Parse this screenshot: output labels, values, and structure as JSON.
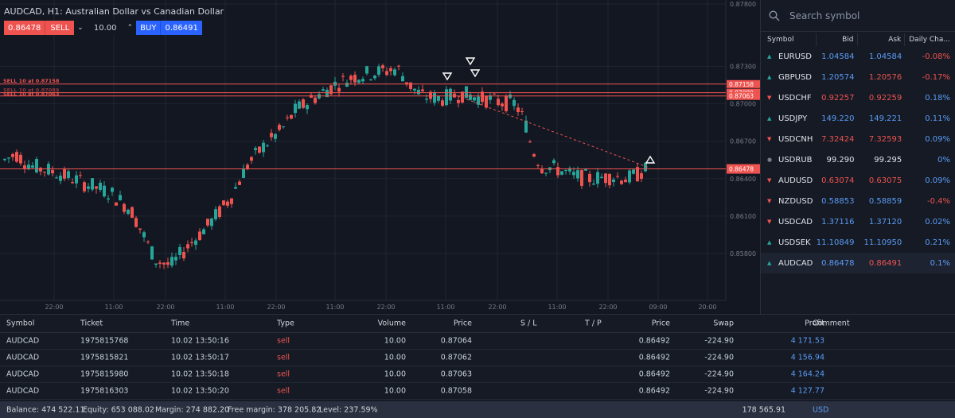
{
  "chart": {
    "title": "AUDCAD, H1: Australian Dollar vs Canadian Dollar",
    "sell_price": "0.86478",
    "sell_label": "SELL",
    "quantity": "10.00",
    "buy_label": "BUY",
    "buy_price": "0.86491",
    "price_axis": [
      "0.87800",
      "0.87300",
      "0.87000",
      "0.86700",
      "0.86400",
      "0.86100",
      "0.85800"
    ],
    "time_axis": [
      "22:00",
      "11:00",
      "22:00",
      "11:00",
      "22:00",
      "11:00",
      "22:00",
      "11:00",
      "22:00",
      "11:00",
      "22:00",
      "09:00",
      "20:00"
    ],
    "order_labels": [
      "SELL 10 at 0.87158",
      "SELL 10 at 0.87089",
      "SELL 10 at 0.87063"
    ],
    "price_tags": [
      "0.87158",
      "0.87089",
      "0.87063"
    ],
    "current_price_tag": "0.86478",
    "colors": {
      "up": "#26a69a",
      "down": "#ef5350",
      "order_line": "#ef5350",
      "background": "#131722"
    }
  },
  "watchlist": {
    "search_placeholder": "Search symbol",
    "search_icon": "search-icon",
    "headers": {
      "symbol": "Symbol",
      "bid": "Bid",
      "ask": "Ask",
      "change": "Daily Cha..."
    },
    "rows": [
      {
        "symbol": "EURUSD",
        "dir": "up",
        "bid": "1.04584",
        "ask": "1.04584",
        "change": "-0.08%",
        "bid_color": "blue",
        "ask_color": "blue",
        "change_color": "red"
      },
      {
        "symbol": "GBPUSD",
        "dir": "up",
        "bid": "1.20574",
        "ask": "1.20576",
        "change": "-0.17%",
        "bid_color": "blue",
        "ask_color": "red",
        "change_color": "red"
      },
      {
        "symbol": "USDCHF",
        "dir": "down",
        "bid": "0.92257",
        "ask": "0.92259",
        "change": "0.18%",
        "bid_color": "red",
        "ask_color": "red",
        "change_color": "blue"
      },
      {
        "symbol": "USDJPY",
        "dir": "up",
        "bid": "149.220",
        "ask": "149.221",
        "change": "0.11%",
        "bid_color": "blue",
        "ask_color": "blue",
        "change_color": "blue"
      },
      {
        "symbol": "USDCNH",
        "dir": "down",
        "bid": "7.32424",
        "ask": "7.32593",
        "change": "0.09%",
        "bid_color": "red",
        "ask_color": "red",
        "change_color": "blue"
      },
      {
        "symbol": "USDRUB",
        "dir": "flat",
        "bid": "99.290",
        "ask": "99.295",
        "change": "0%",
        "bid_color": "white",
        "ask_color": "white",
        "change_color": "blue"
      },
      {
        "symbol": "AUDUSD",
        "dir": "down",
        "bid": "0.63074",
        "ask": "0.63075",
        "change": "0.09%",
        "bid_color": "red",
        "ask_color": "red",
        "change_color": "blue"
      },
      {
        "symbol": "NZDUSD",
        "dir": "down",
        "bid": "0.58853",
        "ask": "0.58859",
        "change": "-0.4%",
        "bid_color": "blue",
        "ask_color": "blue",
        "change_color": "red"
      },
      {
        "symbol": "USDCAD",
        "dir": "down",
        "bid": "1.37116",
        "ask": "1.37120",
        "change": "0.02%",
        "bid_color": "blue",
        "ask_color": "blue",
        "change_color": "blue"
      },
      {
        "symbol": "USDSEK",
        "dir": "up",
        "bid": "11.10849",
        "ask": "11.10950",
        "change": "0.21%",
        "bid_color": "blue",
        "ask_color": "blue",
        "change_color": "blue"
      },
      {
        "symbol": "AUDCAD",
        "dir": "up",
        "bid": "0.86478",
        "ask": "0.86491",
        "change": "0.1%",
        "bid_color": "blue",
        "ask_color": "red",
        "change_color": "blue",
        "selected": true
      }
    ]
  },
  "positions": {
    "headers": {
      "symbol": "Symbol",
      "ticket": "Ticket",
      "time": "Time",
      "type": "Type",
      "volume": "Volume",
      "open_price": "Price",
      "sl": "S / L",
      "tp": "T / P",
      "price": "Price",
      "swap": "Swap",
      "profit": "Profit",
      "comment": "Comment"
    },
    "rows": [
      {
        "symbol": "AUDCAD",
        "ticket": "1975815768",
        "time": "10.02 13:50:16",
        "type": "sell",
        "volume": "10.00",
        "open_price": "0.87064",
        "price": "0.86492",
        "swap": "-224.90",
        "profit": "4 171.53"
      },
      {
        "symbol": "AUDCAD",
        "ticket": "1975815821",
        "time": "10.02 13:50:17",
        "type": "sell",
        "volume": "10.00",
        "open_price": "0.87062",
        "price": "0.86492",
        "swap": "-224.90",
        "profit": "4 156.94"
      },
      {
        "symbol": "AUDCAD",
        "ticket": "1975815980",
        "time": "10.02 13:50:18",
        "type": "sell",
        "volume": "10.00",
        "open_price": "0.87063",
        "price": "0.86492",
        "swap": "-224.90",
        "profit": "4 164.24"
      },
      {
        "symbol": "AUDCAD",
        "ticket": "1975816303",
        "time": "10.02 13:50:20",
        "type": "sell",
        "volume": "10.00",
        "open_price": "0.87058",
        "price": "0.86492",
        "swap": "-224.90",
        "profit": "4 127.77"
      }
    ]
  },
  "footer": {
    "balance": "Balance: 474 522.11",
    "equity": "Equity: 653 088.02",
    "margin": "Margin: 274 882.20",
    "free_margin": "Free margin: 378 205.82",
    "level": "Level: 237.59%",
    "total_profit": "178 565.91",
    "currency": "USD"
  }
}
